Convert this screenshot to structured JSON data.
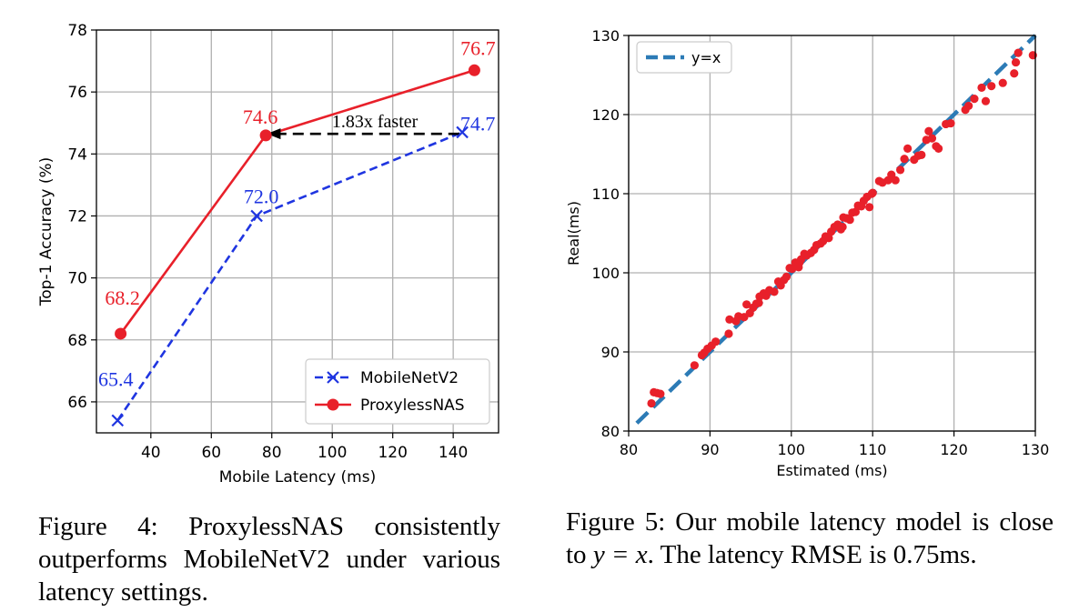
{
  "chart_data": [
    {
      "type": "line",
      "xlabel": "Mobile Latency (ms)",
      "ylabel": "Top-1 Accuracy (%)",
      "xlim": [
        22,
        155
      ],
      "ylim": [
        65,
        78
      ],
      "xticks": [
        40,
        60,
        80,
        100,
        120,
        140
      ],
      "yticks": [
        66,
        68,
        70,
        72,
        74,
        76,
        78
      ],
      "grid": true,
      "legend_position": "bottom-right",
      "series": [
        {
          "name": "MobileNetV2",
          "color": "#1f35e0",
          "style": "dashed",
          "marker": "x",
          "x": [
            29,
            75,
            143
          ],
          "y": [
            65.4,
            72.0,
            74.7
          ],
          "labels": [
            "65.4",
            "72.0",
            "74.7"
          ]
        },
        {
          "name": "ProxylessNAS",
          "color": "#e8202a",
          "style": "solid",
          "marker": "o",
          "x": [
            30,
            78,
            147
          ],
          "y": [
            68.2,
            74.6,
            76.7
          ],
          "labels": [
            "68.2",
            "74.6",
            "76.7"
          ]
        }
      ],
      "annotations": [
        {
          "text": "1.83x faster",
          "arrow_from": [
            142,
            74.65
          ],
          "arrow_to": [
            79,
            74.65
          ]
        }
      ]
    },
    {
      "type": "scatter",
      "xlabel": "Estimated (ms)",
      "ylabel": "Real(ms)",
      "xlim": [
        80,
        130
      ],
      "ylim": [
        80,
        130
      ],
      "xticks": [
        80,
        90,
        100,
        110,
        120,
        130
      ],
      "yticks": [
        80,
        90,
        100,
        110,
        120,
        130
      ],
      "grid": true,
      "legend_position": "top-left",
      "reference_line": {
        "name": "y=x",
        "color": "#2c7bb6",
        "style": "dashed",
        "x": [
          81,
          130
        ],
        "y": [
          81,
          130
        ]
      },
      "points_color": "#e8202a",
      "x": [
        82.8,
        83.1,
        83.5,
        83.9,
        88.1,
        89.0,
        89.3,
        89.7,
        90.2,
        90.7,
        92.3,
        92.4,
        93.2,
        93.5,
        94.2,
        94.5,
        94.9,
        95.3,
        95.7,
        96.1,
        96.6,
        96.9,
        97.3,
        97.9,
        98.4,
        98.7,
        99.1,
        99.4,
        99.8,
        100.1,
        100.5,
        100.9,
        101.2,
        101.6,
        101.9,
        102.4,
        102.8,
        103.1,
        103.6,
        103.9,
        104.2,
        104.6,
        104.9,
        105.3,
        105.7,
        106.1,
        106.4,
        106.8,
        107.2,
        107.5,
        107.9,
        108.2,
        108.6,
        108.9,
        109.3,
        109.6,
        110.0,
        110.8,
        111.2,
        111.9,
        112.3,
        112.8,
        113.4,
        113.9,
        114.3,
        115.1,
        115.6,
        116.0,
        116.6,
        116.9,
        117.3,
        117.8,
        118.1,
        119.0,
        119.6,
        121.4,
        121.8,
        122.5,
        123.4,
        123.9,
        124.6,
        126.0,
        127.4,
        127.6,
        127.9,
        129.7,
        109.9,
        106.3,
        101.0,
        96.0
      ],
      "y": [
        83.5,
        84.9,
        84.8,
        84.7,
        88.3,
        89.6,
        89.9,
        90.4,
        90.8,
        91.3,
        92.3,
        94.1,
        93.9,
        94.5,
        94.4,
        96.0,
        94.9,
        95.6,
        96.1,
        97.0,
        97.4,
        97.1,
        97.8,
        97.6,
        98.9,
        98.4,
        99.1,
        99.5,
        100.6,
        100.5,
        101.3,
        100.7,
        101.7,
        102.4,
        102.2,
        102.5,
        102.9,
        103.5,
        103.7,
        104.0,
        104.6,
        104.4,
        105.2,
        105.8,
        106.1,
        105.5,
        107.0,
        106.9,
        106.7,
        107.6,
        107.7,
        108.5,
        108.4,
        109.1,
        109.6,
        108.3,
        110.1,
        111.6,
        111.4,
        111.7,
        112.4,
        111.7,
        113.0,
        114.4,
        115.7,
        114.3,
        114.8,
        114.9,
        116.8,
        117.9,
        117.0,
        116.0,
        115.7,
        118.8,
        118.9,
        120.6,
        121.1,
        122.0,
        123.4,
        121.7,
        123.6,
        124.0,
        125.2,
        126.6,
        127.8,
        127.5,
        110.0,
        105.8,
        101.3,
        96.2
      ]
    }
  ],
  "captions": {
    "fig4": "Figure 4:  ProxylessNAS consistently outperforms MobileNetV2 under various latency settings.",
    "fig5_before": "Figure 5:  Our mobile latency model is close to ",
    "fig5_math": "y = x",
    "fig5_after": ".  The latency RMSE is 0.75ms."
  }
}
